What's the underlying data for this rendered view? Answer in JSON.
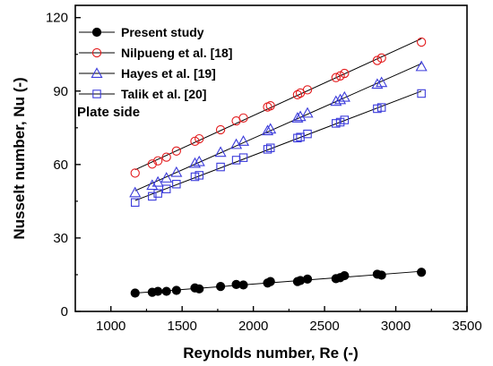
{
  "chart_data": {
    "type": "scatter",
    "xlabel": "Reynolds number, Re (-)",
    "ylabel": "Nusselt number, Nu (-)",
    "xlim": [
      750,
      3500
    ],
    "ylim": [
      0,
      125
    ],
    "xticks": [
      1000,
      1500,
      2000,
      2500,
      3000,
      3500
    ],
    "yticks": [
      0,
      30,
      60,
      90,
      120
    ],
    "grid": false,
    "legend_position": "top-left",
    "annotations": [
      {
        "text": "Plate side"
      }
    ],
    "series": [
      {
        "name": "Present study",
        "marker": "filled-circle",
        "color": "#000000",
        "x": [
          1170,
          1290,
          1330,
          1390,
          1460,
          1590,
          1620,
          1770,
          1880,
          1930,
          2100,
          2120,
          2310,
          2330,
          2380,
          2580,
          2610,
          2640,
          2870,
          2900,
          3180
        ],
        "y": [
          7.5,
          7.8,
          8.2,
          8.2,
          8.6,
          9.6,
          9.2,
          10.2,
          11.0,
          10.8,
          11.6,
          12.2,
          12.2,
          12.6,
          13.2,
          13.4,
          13.8,
          14.6,
          15.2,
          14.8,
          16.0
        ]
      },
      {
        "name": "Nilpueng et al. [18]",
        "marker": "open-circle",
        "color": "#e31a1c",
        "x": [
          1170,
          1290,
          1330,
          1390,
          1460,
          1590,
          1620,
          1770,
          1880,
          1930,
          2100,
          2120,
          2310,
          2330,
          2380,
          2580,
          2610,
          2640,
          2870,
          2900,
          3180
        ],
        "y": [
          56.5,
          60.2,
          61.5,
          63.0,
          65.5,
          69.5,
          70.5,
          74.2,
          77.8,
          79.0,
          83.5,
          84.0,
          88.5,
          89.2,
          90.5,
          95.5,
          96.2,
          97.2,
          102.5,
          103.5,
          110.0
        ]
      },
      {
        "name": "Hayes et al. [19]",
        "marker": "open-triangle",
        "color": "#3b3bdb",
        "x": [
          1170,
          1290,
          1330,
          1390,
          1460,
          1590,
          1620,
          1770,
          1880,
          1930,
          2100,
          2120,
          2310,
          2330,
          2380,
          2580,
          2610,
          2640,
          2870,
          2900,
          3180
        ],
        "y": [
          48.5,
          51.5,
          52.8,
          54.5,
          56.8,
          60.5,
          61.2,
          65.0,
          68.2,
          69.5,
          73.8,
          74.5,
          79.0,
          79.6,
          81.0,
          85.8,
          86.5,
          87.5,
          92.8,
          93.5,
          100.0
        ]
      },
      {
        "name": "Talik et al. [20]",
        "marker": "open-square",
        "color": "#3b3bdb",
        "x": [
          1170,
          1290,
          1330,
          1390,
          1460,
          1590,
          1620,
          1770,
          1880,
          1930,
          2100,
          2120,
          2310,
          2330,
          2380,
          2580,
          2610,
          2640,
          2870,
          2900,
          3180
        ],
        "y": [
          44.5,
          47.0,
          48.2,
          50.0,
          52.0,
          55.0,
          55.6,
          59.0,
          61.8,
          62.8,
          66.2,
          66.8,
          70.8,
          71.2,
          72.5,
          76.8,
          77.3,
          78.2,
          82.8,
          83.3,
          89.0
        ]
      }
    ]
  }
}
